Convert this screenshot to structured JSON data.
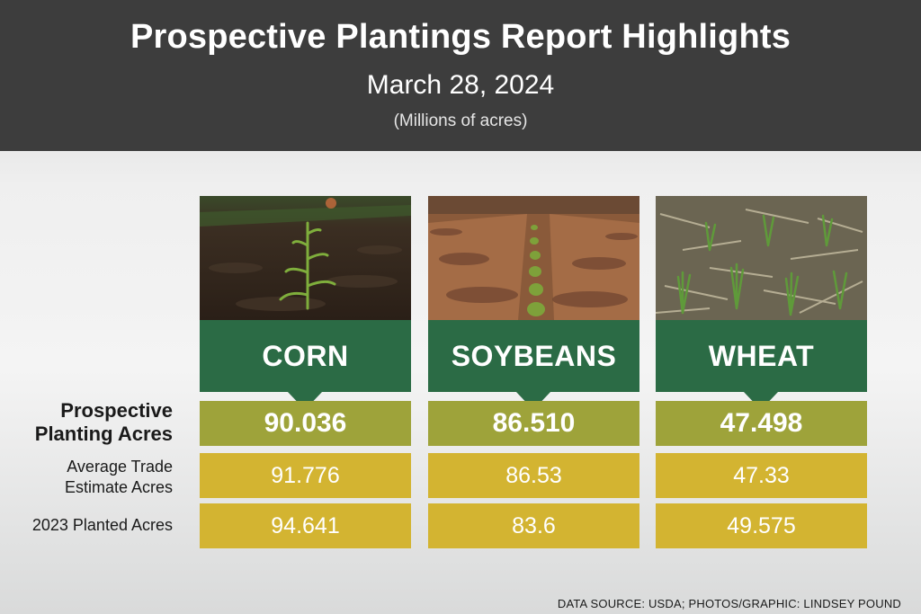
{
  "header": {
    "title": "Prospective Plantings Report Highlights",
    "date": "March 28, 2024",
    "units": "(Millions of acres)"
  },
  "row_labels": {
    "prospective_line1": "Prospective",
    "prospective_line2": "Planting Acres",
    "trade_line1": "Average Trade",
    "trade_line2": "Estimate Acres",
    "planted": "2023 Planted Acres"
  },
  "crops": [
    {
      "name": "CORN",
      "prospective": "90.036",
      "trade_estimate": "91.776",
      "planted_2023": "94.641",
      "photo": "corn-seedling-field-photo"
    },
    {
      "name": "SOYBEANS",
      "prospective": "86.510",
      "trade_estimate": "86.53",
      "planted_2023": "83.6",
      "photo": "soybean-rows-field-photo"
    },
    {
      "name": "WHEAT",
      "prospective": "47.498",
      "trade_estimate": "47.33",
      "planted_2023": "49.575",
      "photo": "wheat-stubble-field-photo"
    }
  ],
  "colors": {
    "header_bg": "#3d3d3d",
    "crop_label_green": "#2b6b45",
    "prospective_olive": "#9ea33a",
    "estimate_gold": "#d3b431"
  },
  "footer": {
    "credit": "DATA SOURCE: USDA; PHOTOS/GRAPHIC: LINDSEY POUND"
  }
}
